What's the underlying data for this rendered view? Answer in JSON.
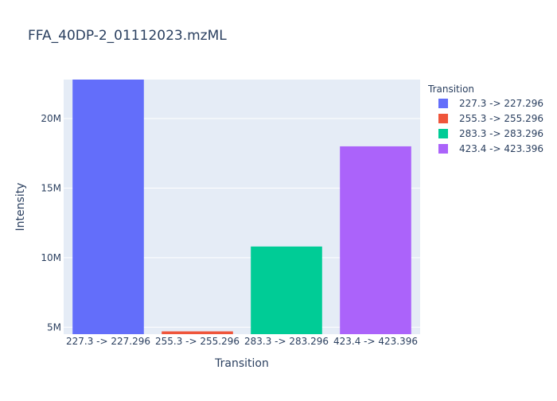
{
  "chart_data": {
    "type": "bar",
    "title": "FFA_40DP-2_01112023.mzML",
    "xlabel": "Transition",
    "ylabel": "Intensity",
    "categories": [
      "227.3 -> 227.296",
      "255.3 -> 255.296",
      "283.3 -> 283.296",
      "423.4 -> 423.396"
    ],
    "values": [
      22800000,
      4700000,
      10800000,
      18000000
    ],
    "ylim": [
      4500000,
      22800000
    ],
    "yticks": [
      5000000,
      10000000,
      15000000,
      20000000
    ],
    "ytick_labels": [
      "5M",
      "10M",
      "15M",
      "20M"
    ],
    "grid": true,
    "legend": {
      "title": "Transition",
      "placement": "right",
      "entries": [
        "227.3 -> 227.296",
        "255.3 -> 255.296",
        "283.3 -> 283.296",
        "423.4 -> 423.396"
      ]
    },
    "colors": [
      "#636efa",
      "#EF553B",
      "#00cc96",
      "#ab63fa"
    ],
    "plot_background": "#e5ecf6"
  }
}
